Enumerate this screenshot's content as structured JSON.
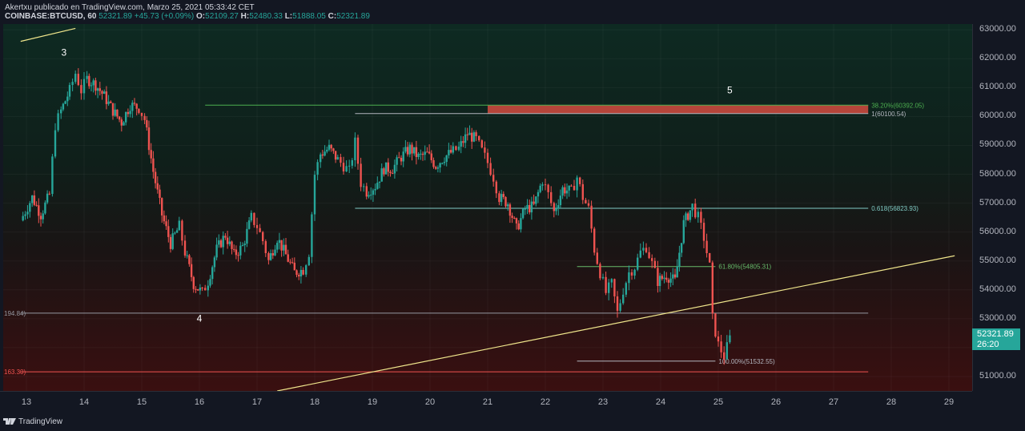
{
  "header": {
    "publisher_line": "Akertxu publicado en TradingView.com, Marzo 25, 2021 05:33:42 CET",
    "symbol": "COINBASE:BTCUSD, 60",
    "last": "52321.89",
    "change": "+45.73 (+0.09%)",
    "open_label": "O:",
    "open": "52109.27",
    "high_label": "H:",
    "high": "52480.33",
    "low_label": "L:",
    "low": "51888.05",
    "close_label": "C:",
    "close": "52321.89"
  },
  "price_badge": {
    "price": "52321.89",
    "countdown": "26:20",
    "color": "#26a69a"
  },
  "footer": {
    "brand": "TradingView"
  },
  "colors": {
    "up": "#26a69a",
    "down": "#ef5350",
    "trendline": "#f0e68c",
    "fib_green": "#4caf50",
    "zone": "#b5453a"
  },
  "chart_data": {
    "type": "candlestick",
    "ylim": [
      50500,
      63200
    ],
    "y_ticks": [
      "63000.00",
      "62000.00",
      "61000.00",
      "60000.00",
      "59000.00",
      "58000.00",
      "57000.00",
      "56000.00",
      "55000.00",
      "54000.00",
      "53000.00",
      "52000.00",
      "51000.00"
    ],
    "x_ticks": [
      "13",
      "14",
      "15",
      "16",
      "17",
      "18",
      "19",
      "20",
      "21",
      "22",
      "23",
      "24",
      "25",
      "26",
      "27",
      "28",
      "29"
    ],
    "close_path": [
      [
        12.9,
        56400
      ],
      [
        13.1,
        57200
      ],
      [
        13.25,
        56600
      ],
      [
        13.4,
        57300
      ],
      [
        13.5,
        59700
      ],
      [
        13.6,
        60200
      ],
      [
        13.75,
        60900
      ],
      [
        13.85,
        61500
      ],
      [
        13.95,
        60900
      ],
      [
        14.05,
        61300
      ],
      [
        14.2,
        61100
      ],
      [
        14.35,
        60700
      ],
      [
        14.5,
        60200
      ],
      [
        14.65,
        59800
      ],
      [
        14.8,
        60400
      ],
      [
        14.95,
        60300
      ],
      [
        15.05,
        59900
      ],
      [
        15.2,
        58100
      ],
      [
        15.35,
        56600
      ],
      [
        15.5,
        55600
      ],
      [
        15.65,
        56200
      ],
      [
        15.75,
        55300
      ],
      [
        15.9,
        54200
      ],
      [
        16.05,
        53900
      ],
      [
        16.15,
        54300
      ],
      [
        16.3,
        55400
      ],
      [
        16.45,
        55900
      ],
      [
        16.6,
        55200
      ],
      [
        16.75,
        55500
      ],
      [
        16.9,
        56500
      ],
      [
        17.0,
        56200
      ],
      [
        17.1,
        55700
      ],
      [
        17.2,
        55000
      ],
      [
        17.35,
        55800
      ],
      [
        17.5,
        55200
      ],
      [
        17.65,
        54600
      ],
      [
        17.8,
        54700
      ],
      [
        17.9,
        55300
      ],
      [
        18.0,
        58000
      ],
      [
        18.1,
        58700
      ],
      [
        18.25,
        58900
      ],
      [
        18.4,
        58500
      ],
      [
        18.5,
        58300
      ],
      [
        18.6,
        58100
      ],
      [
        18.7,
        59100
      ],
      [
        18.8,
        57700
      ],
      [
        18.9,
        57400
      ],
      [
        19.05,
        57600
      ],
      [
        19.2,
        58200
      ],
      [
        19.35,
        58200
      ],
      [
        19.5,
        58600
      ],
      [
        19.65,
        58900
      ],
      [
        19.8,
        58600
      ],
      [
        19.95,
        58700
      ],
      [
        20.1,
        58300
      ],
      [
        20.25,
        58600
      ],
      [
        20.4,
        58800
      ],
      [
        20.5,
        58900
      ],
      [
        20.65,
        59400
      ],
      [
        20.8,
        59200
      ],
      [
        20.9,
        58800
      ],
      [
        21.0,
        58400
      ],
      [
        21.1,
        57900
      ],
      [
        21.2,
        57200
      ],
      [
        21.35,
        57000
      ],
      [
        21.5,
        56100
      ],
      [
        21.65,
        56800
      ],
      [
        21.8,
        56900
      ],
      [
        21.95,
        57800
      ],
      [
        22.05,
        57300
      ],
      [
        22.15,
        56700
      ],
      [
        22.3,
        57500
      ],
      [
        22.45,
        57400
      ],
      [
        22.55,
        57900
      ],
      [
        22.65,
        57200
      ],
      [
        22.75,
        56800
      ],
      [
        22.85,
        55400
      ],
      [
        22.95,
        54600
      ],
      [
        23.05,
        53900
      ],
      [
        23.15,
        54200
      ],
      [
        23.25,
        53200
      ],
      [
        23.35,
        54000
      ],
      [
        23.45,
        54600
      ],
      [
        23.55,
        54800
      ],
      [
        23.65,
        55300
      ],
      [
        23.75,
        55500
      ],
      [
        23.85,
        54900
      ],
      [
        23.95,
        54300
      ],
      [
        24.1,
        54500
      ],
      [
        24.25,
        54300
      ],
      [
        24.4,
        56300
      ],
      [
        24.55,
        56900
      ],
      [
        24.65,
        56500
      ],
      [
        24.75,
        55800
      ],
      [
        24.85,
        54800
      ],
      [
        24.9,
        53000
      ],
      [
        25.0,
        52100
      ],
      [
        25.1,
        51700
      ],
      [
        25.2,
        52321.89
      ]
    ],
    "horizontal_levels": [
      {
        "label": "38.20%(60392.05)",
        "value": 60392.05,
        "color": "#4caf50",
        "x_start": 16.1,
        "x_end": 27.6
      },
      {
        "label": "1(60100.54)",
        "value": 60100.54,
        "color": "#b2b5be",
        "x_start": 18.7,
        "x_end": 27.6
      },
      {
        "label": "0.618(56823.93)",
        "value": 56823.93,
        "color": "#80cbc4",
        "x_start": 18.7,
        "x_end": 27.6
      },
      {
        "label": "61.80%(54805.31)",
        "value": 54805.31,
        "color": "#66bb6a",
        "x_start": 22.55,
        "x_end": 24.95
      },
      {
        "label": "194.84)",
        "value": 53194.84,
        "color": "#9598a1",
        "x_start": 12.9,
        "x_end": 27.6
      },
      {
        "label": "100.00%(51532.55)",
        "value": 51532.55,
        "color": "#b2b5be",
        "x_start": 22.55,
        "x_end": 24.95
      },
      {
        "label": "163.30)",
        "value": 51163.3,
        "color": "#ef5350",
        "x_start": 12.9,
        "x_end": 27.6
      }
    ],
    "resistance_zone": {
      "y_low": 60100.54,
      "y_high": 60392.05,
      "x_start": 21.0,
      "x_end": 27.6
    },
    "trendlines": [
      {
        "x1": 12.9,
        "y1": 62600,
        "x2": 13.85,
        "y2": 63050
      },
      {
        "x1": 17.35,
        "y1": 50500,
        "x2": 29.1,
        "y2": 55180
      }
    ],
    "wave_labels": [
      {
        "text": "3",
        "x": 13.65,
        "y": 62100
      },
      {
        "text": "4",
        "x": 16.0,
        "y": 52900
      },
      {
        "text": "5",
        "x": 25.2,
        "y": 60800
      }
    ]
  }
}
